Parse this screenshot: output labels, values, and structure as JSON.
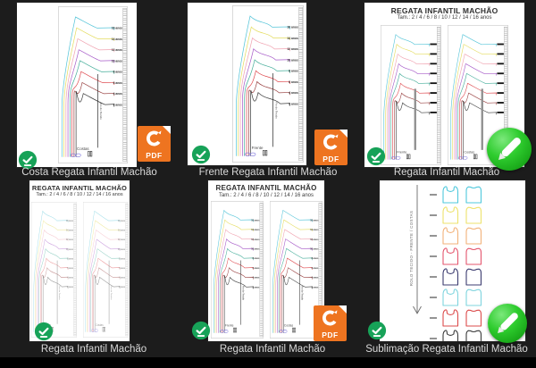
{
  "window": {
    "background": "#1c1c1c",
    "footer_color": "#000000"
  },
  "icons": {
    "pdf_label": "PDF",
    "pdf_color": "#EE7420",
    "check_color": "#17A258",
    "pencil_color": "#2ECC2E"
  },
  "pattern": {
    "sizes": [
      "16 anos",
      "14 anos",
      "12 anos",
      "10 anos",
      "8 anos",
      "6 anos",
      "4 anos",
      "2 anos"
    ],
    "size_colors": [
      "#54C4D8",
      "#E4DC5E",
      "#F0A2B0",
      "#A65AC8",
      "#43AD99",
      "#DE4A4F",
      "#9A4444",
      "#3B3B3B"
    ],
    "grain_label": "Fio do Tecido"
  },
  "sublimation": {
    "arrow_label": "ROLO TECIDO - FRENTE / COSTAS",
    "tank_colors": [
      "#4FC8DC",
      "#EDE26B",
      "#F2B27A",
      "#E4566E",
      "#3C3C70",
      "#7FD4DE",
      "#DB4B4B",
      "#3A3A3A"
    ]
  },
  "tiles": [
    {
      "caption": "Costa Regata Infantil Machão",
      "piece": "Costas",
      "file_type": "pdf"
    },
    {
      "caption": "Frente Regata Infantil Machão",
      "piece": "Frente",
      "file_type": "pdf"
    },
    {
      "caption": "Regata Infantil Machão",
      "title": "REGATA INFANTIL MACHÃO",
      "subtitle": "Tam.: 2 / 4 / 6 / 8 / 10 / 12 / 14 / 16 anos",
      "pieces": [
        "Frente",
        "Costas"
      ],
      "file_type": "image"
    },
    {
      "caption": "Regata Infantil Machão",
      "title": "REGATA INFANTIL MACHÃO",
      "subtitle": "Tam.: 2 / 4 / 6 / 8 / 10 / 12 / 14 / 16 anos",
      "pieces": [
        "Frente",
        "Costas"
      ],
      "file_type": "none"
    },
    {
      "caption": "Regata Infantil Machão",
      "title": "REGATA INFANTIL MACHÃO",
      "subtitle": "Tam.: 2 / 4 / 6 / 8 / 10 / 12 / 14 / 16 anos",
      "pieces": [
        "Frente",
        "Costas"
      ],
      "file_type": "pdf"
    },
    {
      "caption": "Sublimação Regata Infantil Machão",
      "file_type": "image"
    }
  ]
}
